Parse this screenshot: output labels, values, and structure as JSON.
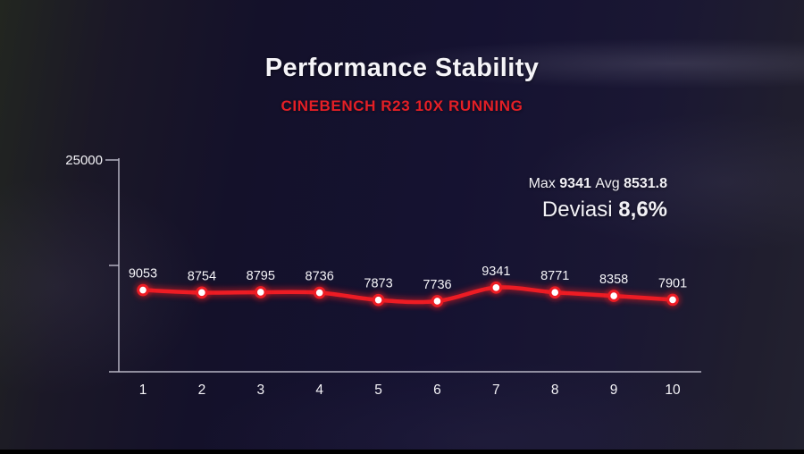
{
  "header": {
    "title": "Performance Stability",
    "subtitle": "CINEBENCH R23 10X RUNNING"
  },
  "stats": {
    "max_label": "Max",
    "max_value": "9341",
    "avg_label": "Avg",
    "avg_value": "8531.8",
    "deviation_label": "Deviasi",
    "deviation_value": "8,6%"
  },
  "chart_data": {
    "type": "line",
    "title": "Performance Stability",
    "subtitle": "CINEBENCH R23 10X RUNNING",
    "x": [
      1,
      2,
      3,
      4,
      5,
      6,
      7,
      8,
      9,
      10
    ],
    "values": [
      9053,
      8754,
      8795,
      8736,
      7873,
      7736,
      9341,
      8771,
      8358,
      7901
    ],
    "ylim": [
      0,
      25000
    ],
    "y_axis_labels": [
      "25000"
    ],
    "grid": false,
    "legend": false,
    "data_labels": true,
    "max": 9341,
    "avg": 8531.8,
    "deviation": "8,6%"
  },
  "colors": {
    "line_red": "#ed1c24",
    "subtitle_red": "#e41f26",
    "marker_white": "#ffffff",
    "axis_gray": "#b9b7c6",
    "text_white": "#f4f3f7",
    "background_navy": "#15122a"
  }
}
